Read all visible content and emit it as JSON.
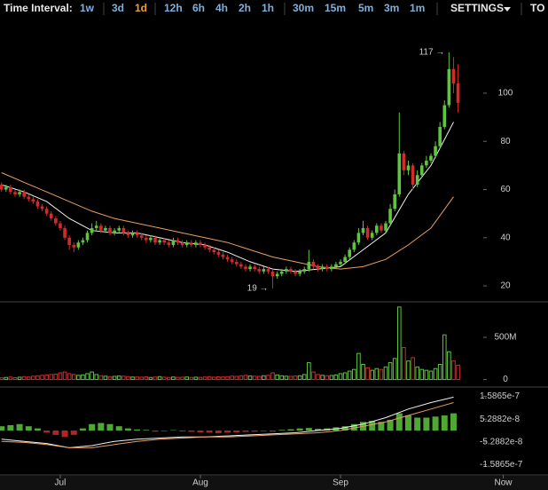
{
  "toolbar": {
    "label": "Time Interval:",
    "intervals": [
      "1w",
      "3d",
      "1d",
      "12h",
      "6h",
      "4h",
      "2h",
      "1h",
      "30m",
      "15m",
      "5m",
      "3m",
      "1m"
    ],
    "selected": 2,
    "settings": "SETTINGS",
    "more": "TO"
  },
  "chart_data": [
    {
      "type": "candlestick",
      "up_color": "#5cc63c",
      "down_color": "#d42a2a",
      "x": [
        1,
        2,
        3,
        4,
        5,
        6,
        7,
        8,
        9,
        10,
        11,
        12,
        13,
        14,
        15,
        16,
        17,
        18,
        19,
        20,
        21,
        22,
        23,
        24,
        25,
        26,
        27,
        28,
        29,
        30,
        31,
        32,
        33,
        34,
        35,
        36,
        37,
        38,
        39,
        40,
        41,
        42,
        43,
        44,
        45,
        46,
        47,
        48,
        49,
        50,
        51,
        52,
        53,
        54,
        55,
        56,
        57,
        58,
        59,
        60,
        61,
        62,
        63,
        64,
        65,
        66,
        67,
        68,
        69,
        70,
        71,
        72,
        73,
        74,
        75,
        76,
        77,
        78,
        79,
        80,
        81,
        82,
        83,
        84,
        85,
        86,
        87,
        88,
        89,
        90,
        91,
        92,
        93,
        94,
        95,
        96,
        97,
        98,
        99,
        100,
        101,
        102
      ],
      "ohlc": [
        [
          62,
          63,
          59,
          60
        ],
        [
          60,
          62,
          59,
          61
        ],
        [
          61,
          62,
          58,
          59
        ],
        [
          59,
          60,
          57,
          58
        ],
        [
          58,
          60,
          57,
          59
        ],
        [
          59,
          60,
          56,
          57
        ],
        [
          57,
          58,
          55,
          56
        ],
        [
          56,
          57,
          54,
          55
        ],
        [
          55,
          56,
          52,
          53
        ],
        [
          53,
          54,
          51,
          52
        ],
        [
          52,
          53,
          49,
          50
        ],
        [
          50,
          51,
          47,
          48
        ],
        [
          48,
          49,
          45,
          46
        ],
        [
          46,
          47,
          43,
          44
        ],
        [
          44,
          45,
          39,
          40
        ],
        [
          40,
          41,
          35,
          37
        ],
        [
          37,
          38,
          34,
          36
        ],
        [
          36,
          39,
          35,
          38
        ],
        [
          38,
          40,
          37,
          39
        ],
        [
          39,
          43,
          38,
          42
        ],
        [
          42,
          46,
          41,
          44
        ],
        [
          44,
          47,
          43,
          45
        ],
        [
          45,
          46,
          42,
          43
        ],
        [
          43,
          45,
          42,
          44
        ],
        [
          44,
          45,
          41,
          42
        ],
        [
          42,
          44,
          41,
          43
        ],
        [
          43,
          45,
          42,
          44
        ],
        [
          44,
          45,
          41,
          42
        ],
        [
          42,
          43,
          40,
          41
        ],
        [
          41,
          43,
          40,
          42
        ],
        [
          42,
          43,
          40,
          41
        ],
        [
          41,
          42,
          39,
          40
        ],
        [
          40,
          41,
          38,
          39
        ],
        [
          39,
          41,
          38,
          40
        ],
        [
          40,
          41,
          37,
          38
        ],
        [
          38,
          40,
          37,
          39
        ],
        [
          39,
          40,
          37,
          38
        ],
        [
          38,
          39,
          36,
          37
        ],
        [
          37,
          40,
          36,
          39
        ],
        [
          39,
          40,
          37,
          38
        ],
        [
          38,
          39,
          36,
          37
        ],
        [
          37,
          39,
          36,
          38
        ],
        [
          38,
          39,
          36,
          37
        ],
        [
          37,
          39,
          36,
          38
        ],
        [
          38,
          39,
          36,
          37
        ],
        [
          37,
          38,
          35,
          36
        ],
        [
          36,
          37,
          34,
          35
        ],
        [
          35,
          36,
          33,
          34
        ],
        [
          34,
          35,
          32,
          33
        ],
        [
          33,
          34,
          31,
          32
        ],
        [
          32,
          33,
          30,
          31
        ],
        [
          31,
          32,
          29,
          30
        ],
        [
          30,
          31,
          28,
          29
        ],
        [
          29,
          30,
          27,
          28
        ],
        [
          28,
          29,
          26,
          27
        ],
        [
          27,
          29,
          26,
          28
        ],
        [
          28,
          29,
          26,
          27
        ],
        [
          27,
          28,
          25,
          26
        ],
        [
          26,
          28,
          25,
          27
        ],
        [
          27,
          28,
          25,
          26
        ],
        [
          26,
          27,
          19,
          24
        ],
        [
          24,
          26,
          23,
          25
        ],
        [
          25,
          27,
          24,
          26
        ],
        [
          26,
          28,
          25,
          27
        ],
        [
          27,
          28,
          25,
          26
        ],
        [
          26,
          27,
          24,
          25
        ],
        [
          25,
          27,
          24,
          26
        ],
        [
          26,
          28,
          25,
          27
        ],
        [
          27,
          35,
          26,
          30
        ],
        [
          30,
          31,
          27,
          28
        ],
        [
          28,
          29,
          26,
          27
        ],
        [
          27,
          29,
          26,
          28
        ],
        [
          28,
          29,
          26,
          27
        ],
        [
          27,
          29,
          26,
          28
        ],
        [
          28,
          30,
          27,
          29
        ],
        [
          29,
          31,
          28,
          30
        ],
        [
          30,
          33,
          29,
          32
        ],
        [
          32,
          36,
          31,
          35
        ],
        [
          35,
          39,
          34,
          38
        ],
        [
          38,
          44,
          37,
          42
        ],
        [
          42,
          47,
          41,
          44
        ],
        [
          44,
          45,
          39,
          40
        ],
        [
          40,
          43,
          39,
          42
        ],
        [
          42,
          46,
          41,
          45
        ],
        [
          45,
          46,
          42,
          43
        ],
        [
          43,
          47,
          42,
          46
        ],
        [
          46,
          54,
          45,
          52
        ],
        [
          52,
          60,
          51,
          58
        ],
        [
          58,
          92,
          57,
          75
        ],
        [
          75,
          76,
          66,
          68
        ],
        [
          68,
          72,
          66,
          70
        ],
        [
          70,
          71,
          60,
          62
        ],
        [
          62,
          68,
          61,
          66
        ],
        [
          66,
          71,
          65,
          70
        ],
        [
          70,
          74,
          69,
          72
        ],
        [
          72,
          75,
          71,
          74
        ],
        [
          74,
          80,
          73,
          78
        ],
        [
          78,
          88,
          77,
          86
        ],
        [
          86,
          97,
          85,
          95
        ],
        [
          95,
          117,
          94,
          110
        ],
        [
          110,
          115,
          100,
          104
        ],
        [
          104,
          112,
          92,
          96
        ]
      ],
      "lines": [
        {
          "color": "#f2f2f2",
          "x": [
            1,
            6,
            11,
            16,
            21,
            26,
            31,
            36,
            41,
            46,
            51,
            56,
            61,
            66,
            71,
            76,
            81,
            86,
            91,
            96,
            101
          ],
          "values": [
            62,
            59,
            55,
            48,
            43,
            42,
            42,
            40,
            38,
            37,
            34,
            30,
            27,
            26,
            27,
            28,
            35,
            42,
            58,
            70,
            88
          ]
        },
        {
          "color": "#e8a060",
          "x": [
            1,
            6,
            11,
            16,
            21,
            26,
            31,
            36,
            41,
            46,
            51,
            56,
            61,
            66,
            71,
            76,
            81,
            86,
            91,
            96,
            101
          ],
          "values": [
            67,
            63,
            59,
            55,
            51,
            48,
            46,
            44,
            42,
            40,
            38,
            35,
            32,
            30,
            28,
            27,
            28,
            31,
            37,
            44,
            57
          ]
        }
      ],
      "annotations": [
        {
          "text": "117 →",
          "x": 100,
          "y": 117
        },
        {
          "text": "19 →",
          "x": 61,
          "y": 19
        }
      ],
      "ylim": [
        13.4,
        131.3
      ],
      "yticks": [
        20,
        40,
        60,
        80,
        100
      ]
    },
    {
      "type": "bar",
      "x": [
        1,
        2,
        3,
        4,
        5,
        6,
        7,
        8,
        9,
        10,
        11,
        12,
        13,
        14,
        15,
        16,
        17,
        18,
        19,
        20,
        21,
        22,
        23,
        24,
        25,
        26,
        27,
        28,
        29,
        30,
        31,
        32,
        33,
        34,
        35,
        36,
        37,
        38,
        39,
        40,
        41,
        42,
        43,
        44,
        45,
        46,
        47,
        48,
        49,
        50,
        51,
        52,
        53,
        54,
        55,
        56,
        57,
        58,
        59,
        60,
        61,
        62,
        63,
        64,
        65,
        66,
        67,
        68,
        69,
        70,
        71,
        72,
        73,
        74,
        75,
        76,
        77,
        78,
        79,
        80,
        81,
        82,
        83,
        84,
        85,
        86,
        87,
        88,
        89,
        90,
        91,
        92,
        93,
        94,
        95,
        96,
        97,
        98,
        99,
        100,
        101,
        102
      ],
      "values": [
        20,
        25,
        30,
        22,
        28,
        35,
        30,
        40,
        45,
        50,
        55,
        60,
        65,
        80,
        90,
        70,
        60,
        50,
        55,
        70,
        90,
        60,
        45,
        40,
        35,
        38,
        42,
        40,
        35,
        30,
        30,
        28,
        32,
        25,
        30,
        35,
        28,
        25,
        30,
        26,
        28,
        30,
        25,
        28,
        26,
        30,
        35,
        28,
        32,
        30,
        35,
        40,
        38,
        45,
        50,
        42,
        40,
        38,
        45,
        50,
        80,
        55,
        45,
        40,
        38,
        42,
        45,
        60,
        200,
        90,
        60,
        50,
        45,
        48,
        55,
        70,
        80,
        100,
        120,
        310,
        180,
        140,
        110,
        130,
        120,
        150,
        200,
        250,
        860,
        380,
        220,
        260,
        150,
        120,
        110,
        100,
        130,
        180,
        530,
        330,
        220,
        170
      ],
      "ylim": [
        -78,
        922
      ],
      "yticks": [
        0,
        {
          "value": 500,
          "label": "500M"
        }
      ]
    },
    {
      "type": "macd",
      "up_color": "#5cc63c",
      "down_color": "#d42a2a",
      "hist_x": [
        1,
        3,
        5,
        7,
        9,
        11,
        13,
        15,
        17,
        19,
        21,
        23,
        25,
        27,
        29,
        31,
        33,
        35,
        37,
        39,
        41,
        43,
        45,
        47,
        49,
        51,
        53,
        55,
        57,
        59,
        61,
        63,
        65,
        67,
        69,
        71,
        73,
        75,
        77,
        79,
        81,
        83,
        85,
        87,
        89,
        91,
        93,
        95,
        97,
        99,
        101
      ],
      "hist": [
        2e-08,
        2.5e-08,
        3e-08,
        2e-08,
        1e-08,
        -1e-08,
        -2e-08,
        -3e-08,
        -2e-08,
        1e-08,
        3e-08,
        3.5e-08,
        3e-08,
        2e-08,
        1e-08,
        5e-09,
        3e-09,
        -5e-09,
        -3e-09,
        2e-09,
        -4e-09,
        -6e-09,
        -8e-09,
        -1e-08,
        -1.2e-08,
        -1e-08,
        -8e-09,
        -6e-09,
        -5e-09,
        -3e-09,
        -5e-09,
        3e-09,
        6e-09,
        1e-08,
        1.2e-08,
        8e-09,
        1e-08,
        1.5e-08,
        2e-08,
        3e-08,
        4e-08,
        4.5e-08,
        4e-08,
        5e-08,
        8e-08,
        7e-08,
        6e-08,
        6e-08,
        6.5e-08,
        7e-08,
        8e-08
      ],
      "lines": [
        {
          "color": "#f2f2f2",
          "x": [
            1,
            6,
            11,
            16,
            21,
            26,
            31,
            36,
            41,
            46,
            51,
            56,
            61,
            66,
            71,
            76,
            81,
            86,
            91,
            96,
            101
          ],
          "values": [
            -4e-08,
            -5e-08,
            -6e-08,
            -8e-08,
            -7e-08,
            -5e-08,
            -4e-08,
            -3.5e-08,
            -3e-08,
            -3e-08,
            -2.5e-08,
            -2e-08,
            -1.5e-08,
            -1e-08,
            0,
            1e-08,
            3e-08,
            6e-08,
            1e-07,
            1.3e-07,
            1.55e-07
          ]
        },
        {
          "color": "#e8a060",
          "x": [
            1,
            6,
            11,
            16,
            21,
            26,
            31,
            36,
            41,
            46,
            51,
            56,
            61,
            66,
            71,
            76,
            81,
            86,
            91,
            96,
            101
          ],
          "values": [
            -5e-08,
            -5.5e-08,
            -6.5e-08,
            -8e-08,
            -8e-08,
            -6.5e-08,
            -5e-08,
            -4e-08,
            -3.5e-08,
            -3e-08,
            -3e-08,
            -2.5e-08,
            -2e-08,
            -1.5e-08,
            -1e-08,
            0,
            2e-08,
            4e-08,
            7e-08,
            1e-07,
            1.3e-07
          ]
        }
      ],
      "ylim": [
        -2.06e-07,
        1.98e-07
      ],
      "yticks": [
        1.5865e-07,
        5.2882e-08,
        -5.2882e-08,
        -1.5865e-07
      ],
      "xlim": [
        0.67,
        121.9
      ],
      "xticks": [
        {
          "value": 14,
          "label": "Jul"
        },
        {
          "value": 45,
          "label": "Aug"
        },
        {
          "value": 76,
          "label": "Sep"
        },
        {
          "value": 112,
          "label": "Now"
        }
      ]
    }
  ]
}
